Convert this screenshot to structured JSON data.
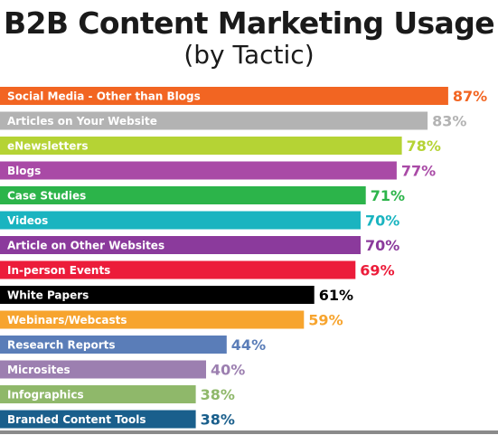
{
  "header": {
    "title": "B2B Content Marketing Usage",
    "subtitle": "(by Tactic)"
  },
  "chart_data": {
    "type": "bar",
    "orientation": "horizontal",
    "title": "B2B Content Marketing Usage",
    "subtitle": "(by Tactic)",
    "xlabel": "",
    "ylabel": "",
    "xlim": [
      0,
      100
    ],
    "grid": false,
    "legend": "none",
    "categories": [
      "Social Media - Other than Blogs",
      "Articles on Your Website",
      "eNewsletters",
      "Blogs",
      "Case Studies",
      "Videos",
      "Article on Other Websites",
      "In-person Events",
      "White Papers",
      "Webinars/Webcasts",
      "Research Reports",
      "Microsites",
      "Infographics",
      "Branded Content Tools"
    ],
    "values": [
      87,
      83,
      78,
      77,
      71,
      70,
      70,
      69,
      61,
      59,
      44,
      40,
      38,
      38
    ],
    "value_labels": [
      "87%",
      "83%",
      "78%",
      "77%",
      "71%",
      "70%",
      "70%",
      "69%",
      "61%",
      "59%",
      "44%",
      "40%",
      "38%",
      "38%"
    ],
    "colors": [
      "#f26522",
      "#b3b3b3",
      "#b5d334",
      "#a94aa6",
      "#2cb44a",
      "#1ab4c0",
      "#8b3a9c",
      "#ec1c3a",
      "#000000",
      "#f7a42e",
      "#5a7db8",
      "#9c7fb0",
      "#8fb86a",
      "#1a5f8c"
    ]
  }
}
